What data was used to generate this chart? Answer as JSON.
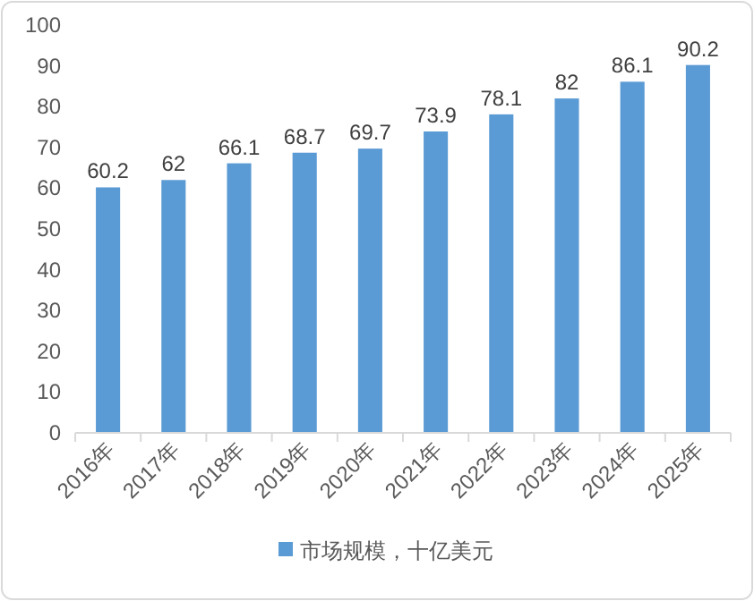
{
  "chart_data": {
    "type": "bar",
    "categories": [
      "2016年",
      "2017年",
      "2018年",
      "2019年",
      "2020年",
      "2021年",
      "2022年",
      "2023年",
      "2024年",
      "2025年"
    ],
    "series": [
      {
        "name": "市场规模，十亿美元",
        "color": "#5b9bd5",
        "values": [
          60.2,
          62,
          66.1,
          68.7,
          69.7,
          73.9,
          78.1,
          82,
          86.1,
          90.2
        ]
      }
    ],
    "ylim": [
      0,
      100
    ],
    "yticks": [
      0,
      10,
      20,
      30,
      40,
      50,
      60,
      70,
      80,
      90,
      100
    ],
    "data_labels": true,
    "legend": "bottom",
    "grid": false
  }
}
